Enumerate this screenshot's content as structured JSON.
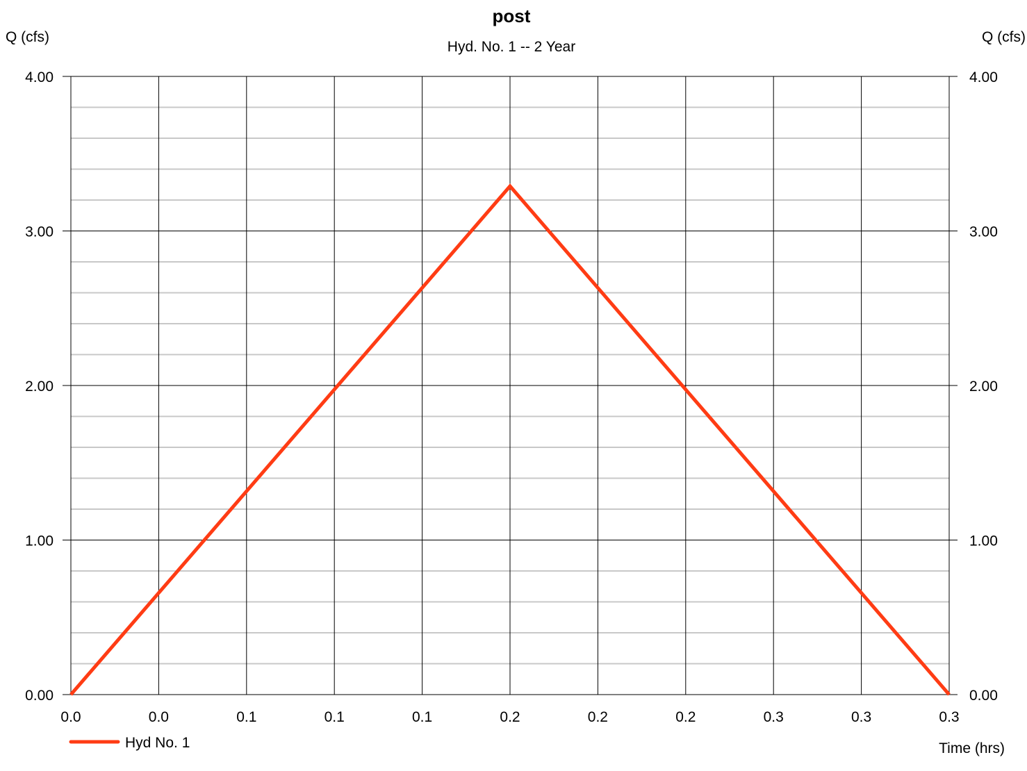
{
  "chart_data": {
    "type": "line",
    "title": "post",
    "subtitle": "Hyd. No. 1 -- 2 Year",
    "ylabel_left": "Q (cfs)",
    "ylabel_right": "Q (cfs)",
    "xlabel": "Time (hrs)",
    "x_tick_labels": [
      "0.0",
      "0.0",
      "0.1",
      "0.1",
      "0.1",
      "0.2",
      "0.2",
      "0.2",
      "0.3",
      "0.3",
      "0.3"
    ],
    "y_tick_labels": [
      "0.00",
      "1.00",
      "2.00",
      "3.00",
      "4.00"
    ],
    "xlim": [
      0,
      0.3
    ],
    "ylim": [
      0,
      4
    ],
    "grid": true,
    "legend_position": "bottom-left",
    "series": [
      {
        "name": "Hyd No. 1",
        "color": "#ff3c14",
        "x": [
          0.0,
          0.15,
          0.3
        ],
        "y": [
          0.0,
          3.29,
          0.0
        ]
      }
    ]
  }
}
